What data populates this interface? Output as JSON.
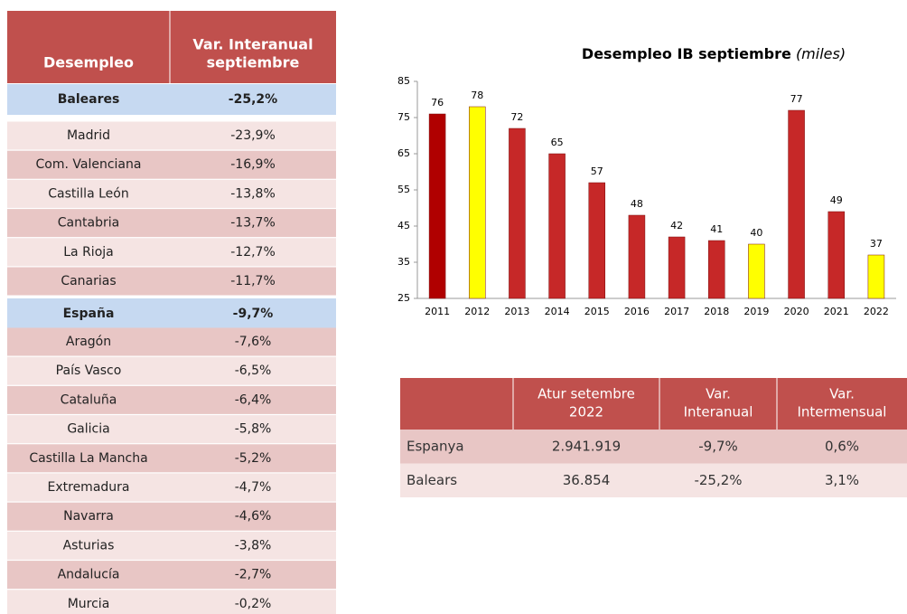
{
  "left_table": {
    "header": [
      [
        "Desempleo"
      ],
      [
        "Var. Interanual",
        "septiembre"
      ]
    ],
    "rows": [
      [
        "Baleares",
        "-25,2%"
      ],
      [
        "Madrid",
        "-23,9%"
      ],
      [
        "Com. Valenciana",
        "-16,9%"
      ],
      [
        "Castilla León",
        "-13,8%"
      ],
      [
        "Cantabria",
        "-13,7%"
      ],
      [
        "La Rioja",
        "-12,7%"
      ],
      [
        "Canarias",
        "-11,7%"
      ],
      [
        "España",
        "-9,7%"
      ],
      [
        "Aragón",
        "-7,6%"
      ],
      [
        "País Vasco",
        "-6,5%"
      ],
      [
        "Cataluña",
        "-6,4%"
      ],
      [
        "Galicia",
        "-5,8%"
      ],
      [
        "Castilla La Mancha",
        "-5,2%"
      ],
      [
        "Extremadura",
        "-4,7%"
      ],
      [
        "Navarra",
        "-4,6%"
      ],
      [
        "Asturias",
        "-3,8%"
      ],
      [
        "Andalucía",
        "-2,7%"
      ],
      [
        "Murcia",
        "-0,2%"
      ]
    ],
    "highlight_rows": [
      0,
      7
    ]
  },
  "chart_data": {
    "type": "bar",
    "title": "Desempleo IB septiembre",
    "title_suffix": "(miles)",
    "categories": [
      "2011",
      "2012",
      "2013",
      "2014",
      "2015",
      "2016",
      "2017",
      "2018",
      "2019",
      "2020",
      "2021",
      "2022"
    ],
    "values": [
      76,
      78,
      72,
      65,
      57,
      48,
      42,
      41,
      40,
      77,
      49,
      37
    ],
    "colors": [
      "#b00000",
      "#ffff00",
      "#c62828",
      "#c62828",
      "#c62828",
      "#c62828",
      "#c62828",
      "#c62828",
      "#ffff00",
      "#c62828",
      "#c62828",
      "#ffff00"
    ],
    "ylim": [
      25,
      85
    ],
    "yticks": [
      25,
      35,
      45,
      55,
      65,
      75,
      85
    ]
  },
  "bottom_table": {
    "header": [
      [],
      [
        "Atur setembre",
        "2022"
      ],
      [
        "Var.",
        "Interanual"
      ],
      [
        "Var.",
        "Intermensual"
      ]
    ],
    "rows": [
      [
        "Espanya",
        "2.941.919",
        "-9,7%",
        "0,6%"
      ],
      [
        "Balears",
        "36.854",
        "-25,2%",
        "3,1%"
      ]
    ]
  }
}
